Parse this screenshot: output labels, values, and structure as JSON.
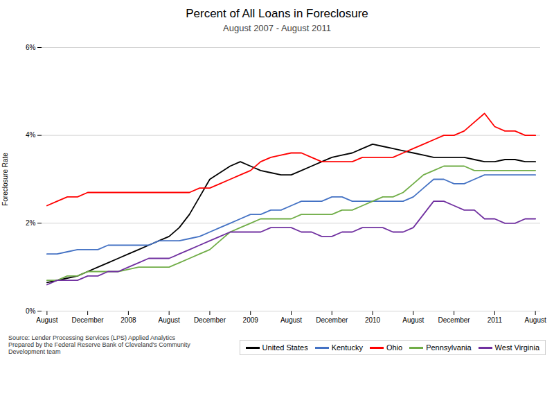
{
  "chart_data": {
    "type": "line",
    "title": "Percent of All Loans in Foreclosure",
    "subtitle": "August 2007 - August 2011",
    "ylabel": "Foreclosure Rate",
    "source": "Source: Lender Processing Services (LPS) Applied Analytics\nPrepared by the Federal Reserve Bank of Cleveland's Community\nDevelopment team",
    "categories": [
      "August",
      null,
      null,
      null,
      "December",
      null,
      null,
      null,
      "2008",
      null,
      null,
      null,
      "August",
      null,
      null,
      null,
      "December",
      null,
      null,
      null,
      "2009",
      null,
      null,
      null,
      "August",
      null,
      null,
      null,
      "December",
      null,
      null,
      null,
      "2010",
      null,
      null,
      null,
      "August",
      null,
      null,
      null,
      "December",
      null,
      null,
      null,
      "2011",
      null,
      null,
      null,
      "August"
    ],
    "ylim": [
      0,
      0.06
    ],
    "yticks": [
      {
        "value": 0,
        "label": "0%"
      },
      {
        "value": 0.02,
        "label": "2%"
      },
      {
        "value": 0.04,
        "label": "4%"
      },
      {
        "value": 0.06,
        "label": "6%"
      }
    ],
    "grid": true,
    "legend": "bottom-right",
    "series": [
      {
        "name": "United States",
        "color": "#000000",
        "values": [
          0.0065,
          0.007,
          0.0075,
          0.008,
          0.009,
          0.01,
          0.011,
          0.012,
          0.013,
          0.014,
          0.015,
          0.016,
          0.017,
          0.019,
          0.022,
          0.026,
          0.03,
          0.0315,
          0.033,
          0.034,
          0.033,
          0.032,
          0.0315,
          0.031,
          0.031,
          0.032,
          0.033,
          0.034,
          0.035,
          0.0355,
          0.036,
          0.037,
          0.038,
          0.0375,
          0.037,
          0.0365,
          0.036,
          0.0355,
          0.035,
          0.035,
          0.035,
          0.035,
          0.0345,
          0.034,
          0.034,
          0.0345,
          0.0345,
          0.034,
          0.034
        ]
      },
      {
        "name": "Kentucky",
        "color": "#4472C4",
        "values": [
          0.013,
          0.013,
          0.0135,
          0.014,
          0.014,
          0.014,
          0.015,
          0.015,
          0.015,
          0.015,
          0.015,
          0.016,
          0.016,
          0.016,
          0.0165,
          0.017,
          0.018,
          0.019,
          0.02,
          0.021,
          0.022,
          0.022,
          0.023,
          0.023,
          0.024,
          0.025,
          0.025,
          0.025,
          0.026,
          0.026,
          0.025,
          0.025,
          0.025,
          0.025,
          0.025,
          0.025,
          0.026,
          0.028,
          0.03,
          0.03,
          0.029,
          0.029,
          0.03,
          0.031,
          0.031,
          0.031,
          0.031,
          0.031,
          0.031
        ]
      },
      {
        "name": "Ohio",
        "color": "#FF0000",
        "values": [
          0.024,
          0.025,
          0.026,
          0.026,
          0.027,
          0.027,
          0.027,
          0.027,
          0.027,
          0.027,
          0.027,
          0.027,
          0.027,
          0.027,
          0.027,
          0.028,
          0.028,
          0.029,
          0.03,
          0.031,
          0.032,
          0.034,
          0.035,
          0.0355,
          0.036,
          0.036,
          0.035,
          0.034,
          0.034,
          0.034,
          0.034,
          0.035,
          0.035,
          0.035,
          0.035,
          0.036,
          0.037,
          0.038,
          0.039,
          0.04,
          0.04,
          0.041,
          0.043,
          0.045,
          0.042,
          0.041,
          0.041,
          0.04,
          0.04
        ]
      },
      {
        "name": "Pennsylvania",
        "color": "#70AD47",
        "values": [
          0.007,
          0.007,
          0.008,
          0.008,
          0.009,
          0.009,
          0.009,
          0.009,
          0.0095,
          0.01,
          0.01,
          0.01,
          0.01,
          0.011,
          0.012,
          0.013,
          0.014,
          0.016,
          0.018,
          0.019,
          0.02,
          0.021,
          0.021,
          0.021,
          0.021,
          0.022,
          0.022,
          0.022,
          0.022,
          0.023,
          0.023,
          0.024,
          0.025,
          0.026,
          0.026,
          0.027,
          0.029,
          0.031,
          0.032,
          0.033,
          0.033,
          0.033,
          0.032,
          0.032,
          0.032,
          0.032,
          0.032,
          0.032,
          0.032
        ]
      },
      {
        "name": "West Virginia",
        "color": "#7030A0",
        "values": [
          0.006,
          0.007,
          0.007,
          0.007,
          0.008,
          0.008,
          0.009,
          0.009,
          0.01,
          0.011,
          0.012,
          0.012,
          0.012,
          0.013,
          0.014,
          0.015,
          0.016,
          0.017,
          0.018,
          0.018,
          0.018,
          0.018,
          0.019,
          0.019,
          0.019,
          0.018,
          0.018,
          0.017,
          0.017,
          0.018,
          0.018,
          0.019,
          0.019,
          0.019,
          0.018,
          0.018,
          0.019,
          0.022,
          0.025,
          0.025,
          0.024,
          0.023,
          0.023,
          0.021,
          0.021,
          0.02,
          0.02,
          0.021,
          0.021
        ]
      }
    ]
  }
}
